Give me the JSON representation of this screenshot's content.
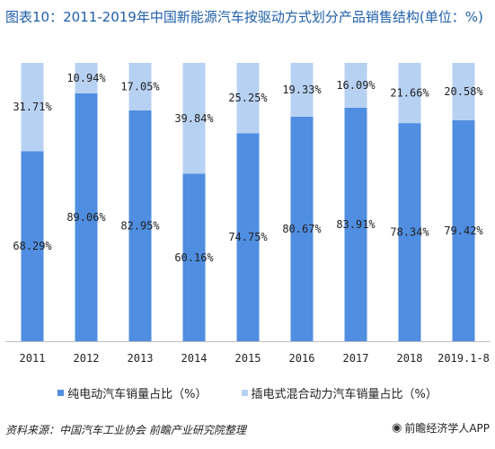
{
  "title": "图表10：2011-2019年中国新能源汽车按驱动方式划分产品销售结构(单位：%)",
  "source": "资料来源：中国汽车工业协会 前瞻产业研究院整理",
  "brand": "前瞻经济学人APP",
  "brand_icon": "eye-icon",
  "chart_data": {
    "type": "bar",
    "stacked": true,
    "categories": [
      "2011",
      "2012",
      "2013",
      "2014",
      "2015",
      "2016",
      "2017",
      "2018",
      "2019.1-8"
    ],
    "series": [
      {
        "name": "纯电动汽车销量占比（%）",
        "color": "#4f8ee0",
        "values": [
          68.29,
          89.06,
          82.95,
          60.16,
          74.75,
          80.67,
          83.91,
          78.34,
          79.42
        ],
        "labels": [
          "68.29%",
          "89.06%",
          "82.95%",
          "60.16%",
          "74.75%",
          "80.67%",
          "83.91%",
          "78.34%",
          "79.42%"
        ]
      },
      {
        "name": "插电式混合动力汽车销量占比（%）",
        "color": "#b7d1f3",
        "values": [
          31.71,
          10.94,
          17.05,
          39.84,
          25.25,
          19.33,
          16.09,
          21.66,
          20.58
        ],
        "labels": [
          "31.71%",
          "10.94%",
          "17.05%",
          "39.84%",
          "25.25%",
          "19.33%",
          "16.09%",
          "21.66%",
          "20.58%"
        ]
      }
    ],
    "ylim": [
      0,
      100
    ],
    "grid": false,
    "legend_position": "bottom"
  }
}
